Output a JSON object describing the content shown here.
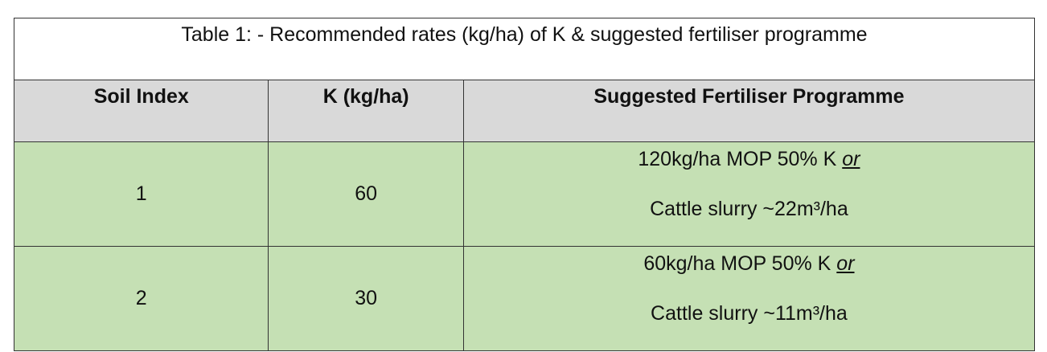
{
  "table": {
    "caption": "Table 1: - Recommended rates (kg/ha) of K & suggested fertiliser programme",
    "headers": [
      "Soil Index",
      "K (kg/ha)",
      "Suggested Fertiliser Programme"
    ],
    "rows": [
      {
        "soil_index": "1",
        "k_rate": "60",
        "programme_line1": "120kg/ha MOP 50% K",
        "programme_or": "or",
        "programme_line2": "Cattle slurry ~22m³/ha"
      },
      {
        "soil_index": "2",
        "k_rate": "30",
        "programme_line1": "60kg/ha MOP 50% K",
        "programme_or": "or",
        "programme_line2": "Cattle slurry ~11m³/ha"
      }
    ]
  },
  "colors": {
    "header_bg": "#d9d9d9",
    "body_bg": "#c5e0b4",
    "caption_bg": "#ffffff",
    "border": "#333333"
  }
}
